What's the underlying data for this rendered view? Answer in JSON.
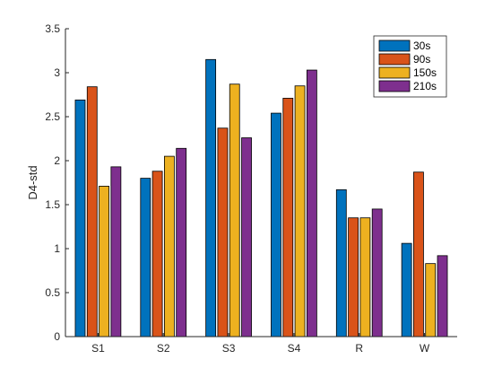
{
  "chart_data": {
    "type": "bar",
    "ylabel": "D4-std",
    "ylim": [
      0,
      3.5
    ],
    "yticks": [
      "0",
      "0.5",
      "1",
      "1.5",
      "2",
      "2.5",
      "3",
      "3.5"
    ],
    "categories": [
      "S1",
      "S2",
      "S3",
      "S4",
      "R",
      "W"
    ],
    "series": [
      {
        "name": "30s",
        "color": "#0072BD",
        "values": [
          2.69,
          1.8,
          3.15,
          2.54,
          1.67,
          1.06
        ]
      },
      {
        "name": "90s",
        "color": "#D95319",
        "values": [
          2.84,
          1.88,
          2.37,
          2.71,
          1.35,
          1.87
        ]
      },
      {
        "name": "150s",
        "color": "#EDB120",
        "values": [
          1.71,
          2.05,
          2.87,
          2.85,
          1.35,
          0.83
        ]
      },
      {
        "name": "210s",
        "color": "#7E2F8E",
        "values": [
          1.93,
          2.14,
          2.26,
          3.03,
          1.45,
          0.92
        ]
      }
    ],
    "legend": "top-right",
    "grid": false
  }
}
